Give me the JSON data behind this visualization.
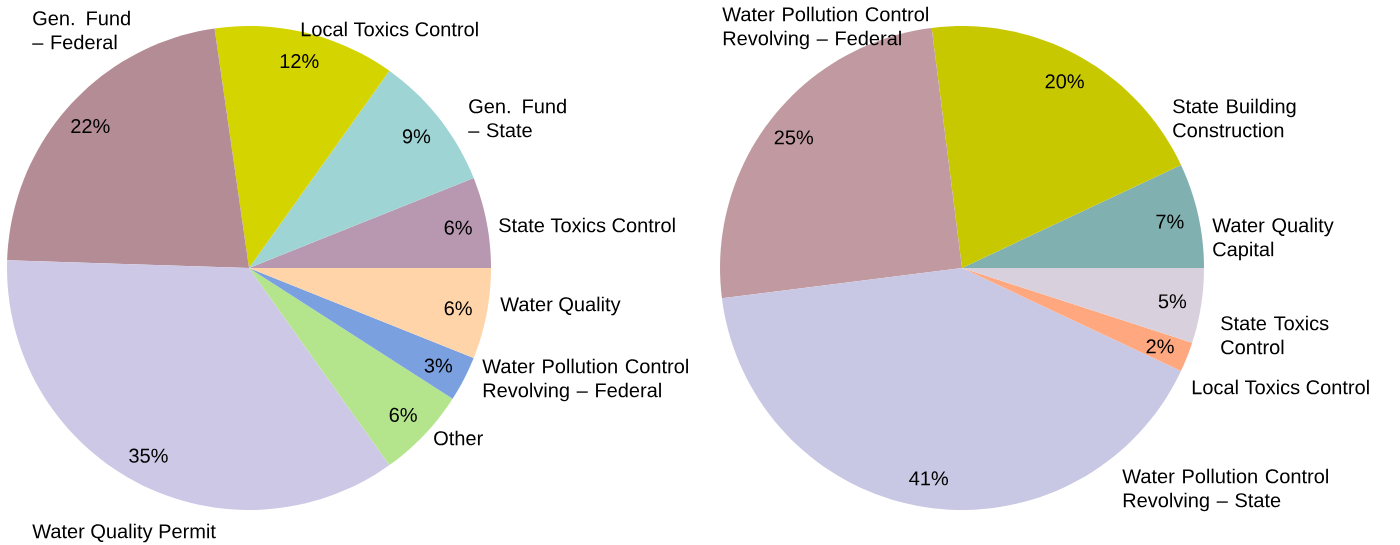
{
  "chart_data": [
    {
      "type": "pie",
      "categories": [
        "State Toxics Control",
        "Gen. Fund – State",
        "Local Toxics Control",
        "Gen. Fund – Federal",
        "Water Quality Permit",
        "Other",
        "Water Pollution Control Revolving – Federal",
        "Water Quality"
      ],
      "values": [
        6,
        9,
        12,
        22,
        35,
        6,
        3,
        6
      ],
      "value_labels": [
        "6%",
        "9%",
        "12%",
        "22%",
        "35%",
        "6%",
        "3%",
        "6%"
      ],
      "colors": [
        "#b898b0",
        "#9fd4d4",
        "#d4d400",
        "#b48c96",
        "#ccc8e6",
        "#b4e48c",
        "#7aa0e0",
        "#ffd4a8"
      ]
    },
    {
      "type": "pie",
      "categories": [
        "Water Quality Capital",
        "State Building Construction",
        "Water Pollution Control Revolving – Federal",
        "Water Pollution Control Revolving – State",
        "Local Toxics Control",
        "State Toxics Control"
      ],
      "values": [
        7,
        20,
        25,
        41,
        2,
        5
      ],
      "value_labels": [
        "7%",
        "20%",
        "25%",
        "41%",
        "2%",
        "5%"
      ],
      "colors": [
        "#80b0b0",
        "#c8c800",
        "#c09aa0",
        "#c8c8e4",
        "#ffa880",
        "#d8d0dc"
      ]
    }
  ]
}
